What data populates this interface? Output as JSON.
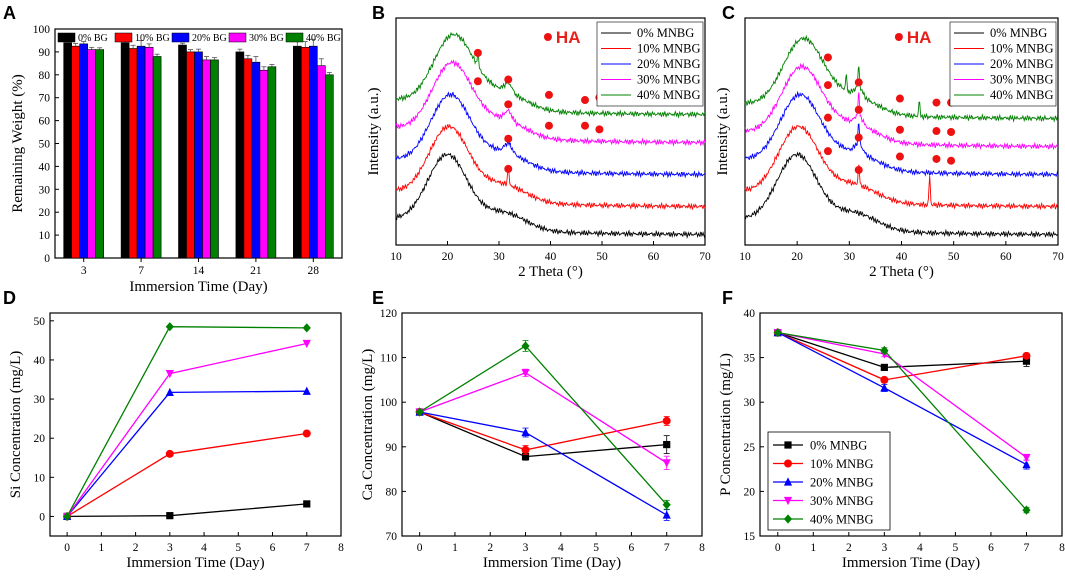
{
  "colors": [
    "#000000",
    "#ff0000",
    "#0000ff",
    "#ff00ff",
    "#008000"
  ],
  "ha_color": "#ee1111",
  "chart_data": [
    {
      "id": "A",
      "panel_label": "A",
      "type": "bar",
      "title": "",
      "xlabel": "Immersion Time (Day)",
      "ylabel": "Remaining Weight (%)",
      "categories": [
        "3",
        "7",
        "14",
        "21",
        "28"
      ],
      "ylim": [
        0,
        100
      ],
      "yticks": [
        0,
        10,
        20,
        30,
        40,
        50,
        60,
        70,
        80,
        90,
        100
      ],
      "legend_position": "top",
      "series": [
        {
          "name": "0% BG",
          "values": [
            94.0,
            94.0,
            93.0,
            90.0,
            92.5
          ],
          "errors": [
            0.8,
            0.6,
            0.8,
            1.2,
            3.5
          ]
        },
        {
          "name": "10% BG",
          "values": [
            92.5,
            91.5,
            90.0,
            87.0,
            92.0
          ],
          "errors": [
            1.2,
            1.4,
            1.0,
            1.5,
            2.5
          ]
        },
        {
          "name": "20% BG",
          "values": [
            93.5,
            92.5,
            90.0,
            85.5,
            92.5
          ],
          "errors": [
            1.0,
            2.5,
            1.2,
            2.5,
            3.0
          ]
        },
        {
          "name": "30% BG",
          "values": [
            91.0,
            92.0,
            86.5,
            82.0,
            84.0
          ],
          "errors": [
            1.0,
            1.5,
            1.5,
            1.5,
            3.0
          ]
        },
        {
          "name": "40% BG",
          "values": [
            91.0,
            88.0,
            86.5,
            83.5,
            80.0
          ],
          "errors": [
            0.8,
            1.0,
            1.0,
            1.0,
            1.0
          ]
        }
      ]
    },
    {
      "id": "B",
      "panel_label": "B",
      "type": "line",
      "title": "",
      "xlabel": "2 Theta (°)",
      "ylabel": "Intensity (a.u.)",
      "xlim": [
        10,
        70
      ],
      "xticks": [
        10,
        20,
        30,
        40,
        50,
        60,
        70
      ],
      "marker_label": "HA",
      "legend_position": "top-right",
      "series": [
        {
          "name": "0% MNBG",
          "offset": 0,
          "sharp_peaks": [],
          "ha_markers": []
        },
        {
          "name": "10% MNBG",
          "offset": 28,
          "sharp_peaks": [
            31.8
          ],
          "ha_markers": [
            31.8
          ]
        },
        {
          "name": "20% MNBG",
          "offset": 60,
          "sharp_peaks": [],
          "ha_markers": [
            31.8
          ]
        },
        {
          "name": "30% MNBG",
          "offset": 92,
          "sharp_peaks": [],
          "ha_markers": [
            25.9,
            31.8,
            39.7,
            46.7,
            49.5
          ]
        },
        {
          "name": "40% MNBG",
          "offset": 120,
          "sharp_peaks": [
            25.9
          ],
          "ha_markers": [
            25.9,
            31.8,
            39.7,
            46.7,
            49.5
          ]
        }
      ]
    },
    {
      "id": "C",
      "panel_label": "C",
      "type": "line",
      "title": "",
      "xlabel": "2 Theta (°)",
      "ylabel": "Intensity (a.u.)",
      "xlim": [
        10,
        70
      ],
      "xticks": [
        10,
        20,
        30,
        40,
        50,
        60,
        70
      ],
      "marker_label": "HA",
      "legend_position": "top-right",
      "series": [
        {
          "name": "0% MNBG",
          "offset": 0,
          "sharp_peaks": [],
          "ha_markers": []
        },
        {
          "name": "10% MNBG",
          "offset": 28,
          "sharp_peaks": [
            31.8,
            45.4
          ],
          "ha_markers": [
            25.9,
            31.8
          ]
        },
        {
          "name": "20% MNBG",
          "offset": 60,
          "sharp_peaks": [
            31.8
          ],
          "ha_markers": [
            25.9,
            31.8,
            39.7,
            46.7,
            49.5
          ]
        },
        {
          "name": "30% MNBG",
          "offset": 88,
          "sharp_peaks": [
            31.8
          ],
          "ha_markers": [
            25.9,
            31.8,
            39.7,
            46.7,
            49.5
          ]
        },
        {
          "name": "40% MNBG",
          "offset": 116,
          "sharp_peaks": [
            29.4,
            31.8,
            43.4
          ],
          "ha_markers": [
            25.9,
            31.8,
            39.7,
            46.7,
            49.5
          ]
        }
      ]
    },
    {
      "id": "D",
      "panel_label": "D",
      "type": "line",
      "title": "",
      "xlabel": "Immersion Time (Day)",
      "ylabel": "Si Concentration (mg/L)",
      "xlim": [
        -0.5,
        8
      ],
      "ylim": [
        -5,
        52
      ],
      "xticks": [
        0,
        1,
        2,
        3,
        4,
        5,
        6,
        7,
        8
      ],
      "yticks": [
        0,
        10,
        20,
        30,
        40,
        50
      ],
      "x": [
        0,
        3,
        7
      ],
      "series": [
        {
          "name": "0% MNBG",
          "marker": "square",
          "values": [
            0,
            0.2,
            3.2
          ]
        },
        {
          "name": "10% MNBG",
          "marker": "circle",
          "values": [
            0,
            16.0,
            21.2
          ]
        },
        {
          "name": "20% MNBG",
          "marker": "triangle-up",
          "values": [
            0,
            31.7,
            32.0
          ]
        },
        {
          "name": "30% MNBG",
          "marker": "triangle-down",
          "values": [
            0,
            36.5,
            44.2
          ]
        },
        {
          "name": "40% MNBG",
          "marker": "diamond",
          "values": [
            0,
            48.5,
            48.2
          ]
        }
      ]
    },
    {
      "id": "E",
      "panel_label": "E",
      "type": "line",
      "title": "",
      "xlabel": "Immersion Time (Day)",
      "ylabel": "Ca Concentration (mg/L)",
      "xlim": [
        -0.5,
        8
      ],
      "ylim": [
        70,
        120
      ],
      "xticks": [
        0,
        1,
        2,
        3,
        4,
        5,
        6,
        7,
        8
      ],
      "yticks": [
        70,
        80,
        90,
        100,
        110,
        120
      ],
      "x": [
        0,
        3,
        7
      ],
      "series": [
        {
          "name": "0% MNBG",
          "marker": "square",
          "values": [
            97.8,
            87.8,
            90.5
          ],
          "errors": [
            0,
            0.8,
            2.0
          ]
        },
        {
          "name": "10% MNBG",
          "marker": "circle",
          "values": [
            97.8,
            89.3,
            95.8
          ],
          "errors": [
            0,
            1.0,
            1.0
          ]
        },
        {
          "name": "20% MNBG",
          "marker": "triangle-up",
          "values": [
            97.8,
            93.2,
            74.7
          ],
          "errors": [
            0,
            1.0,
            1.2
          ]
        },
        {
          "name": "30% MNBG",
          "marker": "triangle-down",
          "values": [
            97.8,
            106.6,
            86.4
          ],
          "errors": [
            0,
            0.8,
            1.5
          ]
        },
        {
          "name": "40% MNBG",
          "marker": "diamond",
          "values": [
            97.8,
            112.6,
            77.0
          ],
          "errors": [
            0,
            1.2,
            1.0
          ]
        }
      ]
    },
    {
      "id": "F",
      "panel_label": "F",
      "type": "line",
      "title": "",
      "xlabel": "Immersion Time (Day)",
      "ylabel": "P Concentration (mg/L)",
      "xlim": [
        -0.5,
        8
      ],
      "ylim": [
        15,
        40
      ],
      "xticks": [
        0,
        1,
        2,
        3,
        4,
        5,
        6,
        7,
        8
      ],
      "yticks": [
        15,
        20,
        25,
        30,
        35,
        40
      ],
      "x": [
        0,
        3,
        7
      ],
      "legend_position": "bottom-left",
      "series": [
        {
          "name": "0% MNBG",
          "marker": "square",
          "values": [
            37.8,
            33.9,
            34.6
          ],
          "errors": [
            0,
            0.3,
            0.6
          ]
        },
        {
          "name": "10% MNBG",
          "marker": "circle",
          "values": [
            37.8,
            32.5,
            35.2
          ],
          "errors": [
            0,
            0.3,
            0.3
          ]
        },
        {
          "name": "20% MNBG",
          "marker": "triangle-up",
          "values": [
            37.8,
            31.6,
            23.0
          ],
          "errors": [
            0,
            0.4,
            0.5
          ]
        },
        {
          "name": "30% MNBG",
          "marker": "triangle-down",
          "values": [
            37.8,
            35.4,
            23.8
          ],
          "errors": [
            0,
            0.3,
            0.3
          ]
        },
        {
          "name": "40% MNBG",
          "marker": "diamond",
          "values": [
            37.8,
            35.8,
            17.9
          ],
          "errors": [
            0,
            0.3,
            0.3
          ]
        }
      ]
    }
  ]
}
